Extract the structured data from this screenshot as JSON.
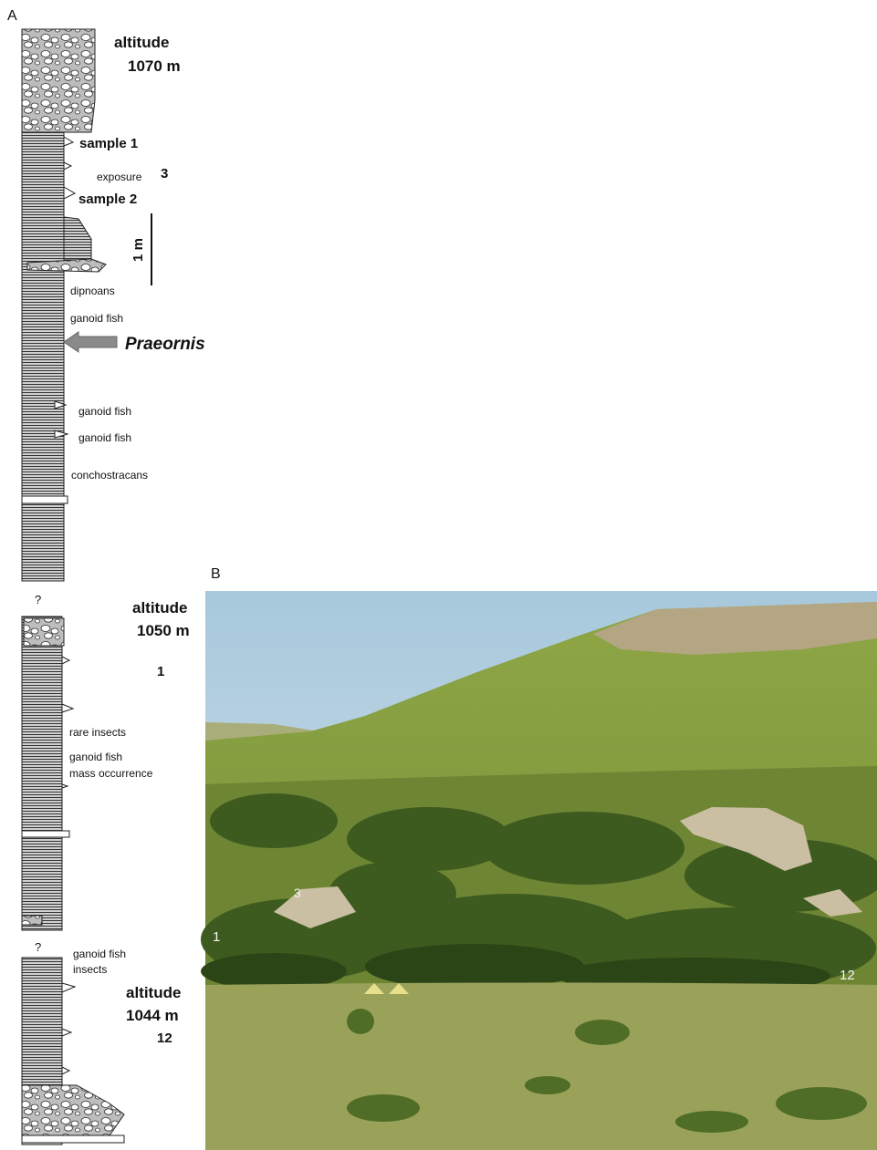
{
  "panel_a": {
    "label": "A",
    "upper_section": {
      "altitude": "altitude",
      "elevation": "1070 m",
      "sample_1": "sample 1",
      "exposure": "exposure",
      "exposure_number": "3",
      "sample_2": "sample 2",
      "scale": "1 m",
      "fossils": [
        "dipnoans",
        "ganoid fish"
      ],
      "taxon": "Praeornis",
      "lower_fossils": [
        "ganoid fish",
        "ganoid fish",
        "conchostracans"
      ]
    },
    "middle_section": {
      "query": "?",
      "altitude": "altitude",
      "elevation": "1050 m",
      "exposure_number": "1",
      "fossils": [
        "rare insects",
        "ganoid fish",
        "mass occurrence"
      ]
    },
    "lower_section": {
      "query": "?",
      "fossils": [
        "ganoid fish",
        "insects"
      ],
      "altitude": "altitude",
      "elevation": "1044 m",
      "exposure_number": "12"
    }
  },
  "panel_b": {
    "label": "B",
    "photo_labels": [
      "3",
      "1",
      "12"
    ]
  }
}
